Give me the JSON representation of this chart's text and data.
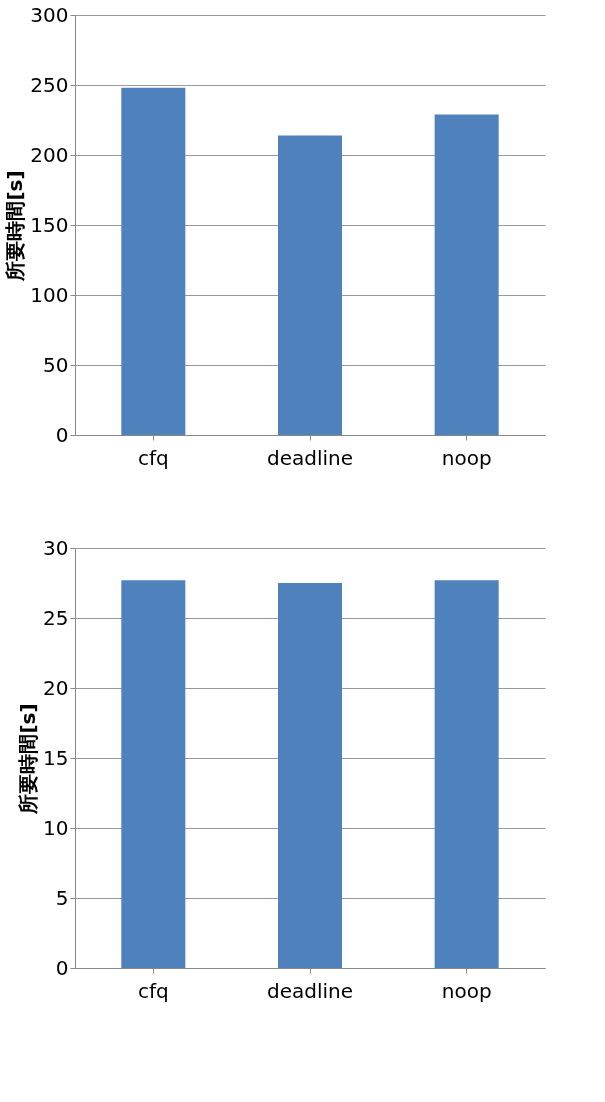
{
  "chart_data": [
    {
      "type": "bar",
      "ylabel": "所要時間[s]",
      "categories": [
        "cfq",
        "deadline",
        "noop"
      ],
      "series": [
        {
          "color": "#4f81bd",
          "values": [
            248,
            214,
            229
          ]
        }
      ],
      "ylim": [
        0,
        300
      ],
      "yticks": [
        0,
        50,
        100,
        150,
        200,
        250,
        300
      ],
      "grid": "y"
    },
    {
      "type": "bar",
      "ylabel": "所要時間[s]",
      "categories": [
        "cfq",
        "deadline",
        "noop"
      ],
      "series": [
        {
          "color": "#4f81bd",
          "values": [
            27.7,
            27.5,
            27.7
          ]
        }
      ],
      "ylim": [
        0,
        30
      ],
      "yticks": [
        0,
        5,
        10,
        15,
        20,
        25,
        30
      ],
      "grid": "y"
    }
  ]
}
